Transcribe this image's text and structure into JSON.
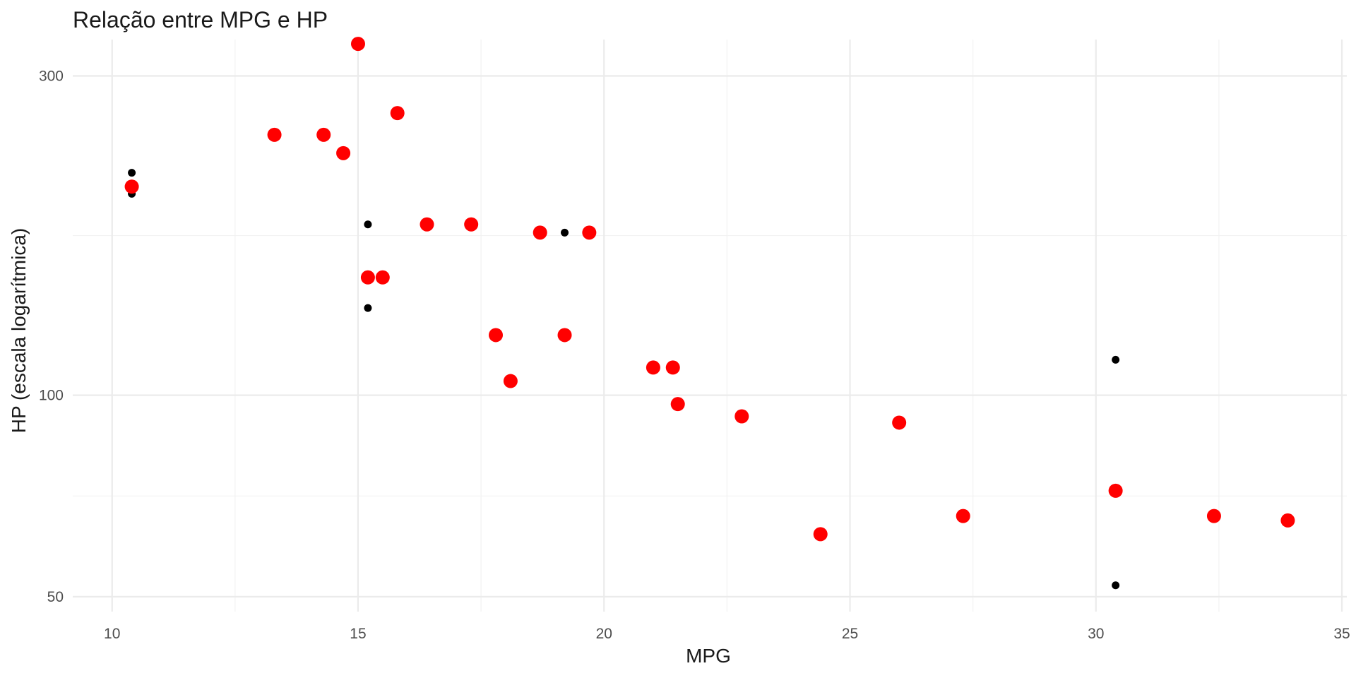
{
  "chart_data": {
    "type": "scatter",
    "title": "Relação entre MPG e HP",
    "xlabel": "MPG",
    "ylabel": "HP (escala logarítmica)",
    "xlim": [
      9.2,
      35.1
    ],
    "ylim": [
      47.5,
      340
    ],
    "y_scale": "log10",
    "grid": true,
    "x_ticks": [
      10,
      15,
      20,
      25,
      30,
      35
    ],
    "x_tick_labels": [
      "10",
      "15",
      "20",
      "25",
      "30",
      "35"
    ],
    "x_minor_ticks": [
      12.5,
      17.5,
      22.5,
      27.5,
      32.5
    ],
    "y_ticks": [
      50,
      100,
      300
    ],
    "y_tick_labels": [
      "50",
      "100",
      "300"
    ],
    "y_minor_ticks": [
      70.7,
      173.2
    ],
    "series": [
      {
        "marker": "small-black",
        "color": "#000000",
        "points": [
          {
            "x": 10.4,
            "y": 215
          },
          {
            "x": 10.4,
            "y": 200
          },
          {
            "x": 15.2,
            "y": 180
          },
          {
            "x": 15.2,
            "y": 135
          },
          {
            "x": 19.2,
            "y": 175
          },
          {
            "x": 19.2,
            "y": 123
          },
          {
            "x": 30.4,
            "y": 113
          },
          {
            "x": 30.4,
            "y": 52
          }
        ]
      },
      {
        "marker": "large-red",
        "color": "#ff0000",
        "points": [
          {
            "x": 10.4,
            "y": 205
          },
          {
            "x": 13.3,
            "y": 245
          },
          {
            "x": 14.3,
            "y": 245
          },
          {
            "x": 14.7,
            "y": 230
          },
          {
            "x": 15.0,
            "y": 335
          },
          {
            "x": 15.8,
            "y": 264
          },
          {
            "x": 15.2,
            "y": 150
          },
          {
            "x": 15.5,
            "y": 150
          },
          {
            "x": 16.4,
            "y": 180
          },
          {
            "x": 17.3,
            "y": 180
          },
          {
            "x": 18.7,
            "y": 175
          },
          {
            "x": 19.7,
            "y": 175
          },
          {
            "x": 19.2,
            "y": 123
          },
          {
            "x": 17.8,
            "y": 123
          },
          {
            "x": 18.1,
            "y": 105
          },
          {
            "x": 21.0,
            "y": 110
          },
          {
            "x": 21.4,
            "y": 110
          },
          {
            "x": 21.5,
            "y": 97
          },
          {
            "x": 22.8,
            "y": 93
          },
          {
            "x": 24.4,
            "y": 62
          },
          {
            "x": 26.0,
            "y": 91
          },
          {
            "x": 27.3,
            "y": 66
          },
          {
            "x": 30.4,
            "y": 72
          },
          {
            "x": 32.4,
            "y": 66
          },
          {
            "x": 33.9,
            "y": 65
          }
        ]
      }
    ]
  }
}
